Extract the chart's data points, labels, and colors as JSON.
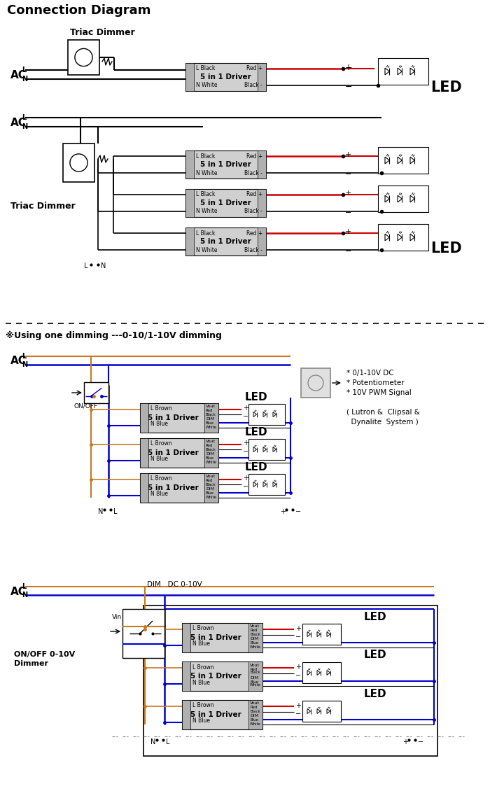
{
  "title": "Connection Diagram",
  "bg_color": "#ffffff",
  "section1_triac_label": "Triac Dimmer",
  "section2_triac_label": "Triac Dimmer",
  "section3_label": "※Using one dimming ---0-10/1-10V dimming",
  "driver_label": "5 in 1 Driver",
  "led_label": "LED",
  "on_off_label": "ON/OFF",
  "notes": [
    "* 0/1-10V DC",
    "* Potentiometer",
    "* 10V PWM Signal",
    "",
    "( Lutron &  Clipsal &",
    "  Dynalite  System )"
  ],
  "on_off_0_10v_line1": "ON/OFF 0-10V",
  "on_off_0_10v_line2": "Dimmer",
  "dim_label": "DIM   DC 0-10V",
  "orange": "#c87820",
  "blue": "#0000cc",
  "red": "#cc0000",
  "black": "#000000",
  "gray_driver": "#d0d0d0",
  "gray_dimmer": "#c8c8c8"
}
